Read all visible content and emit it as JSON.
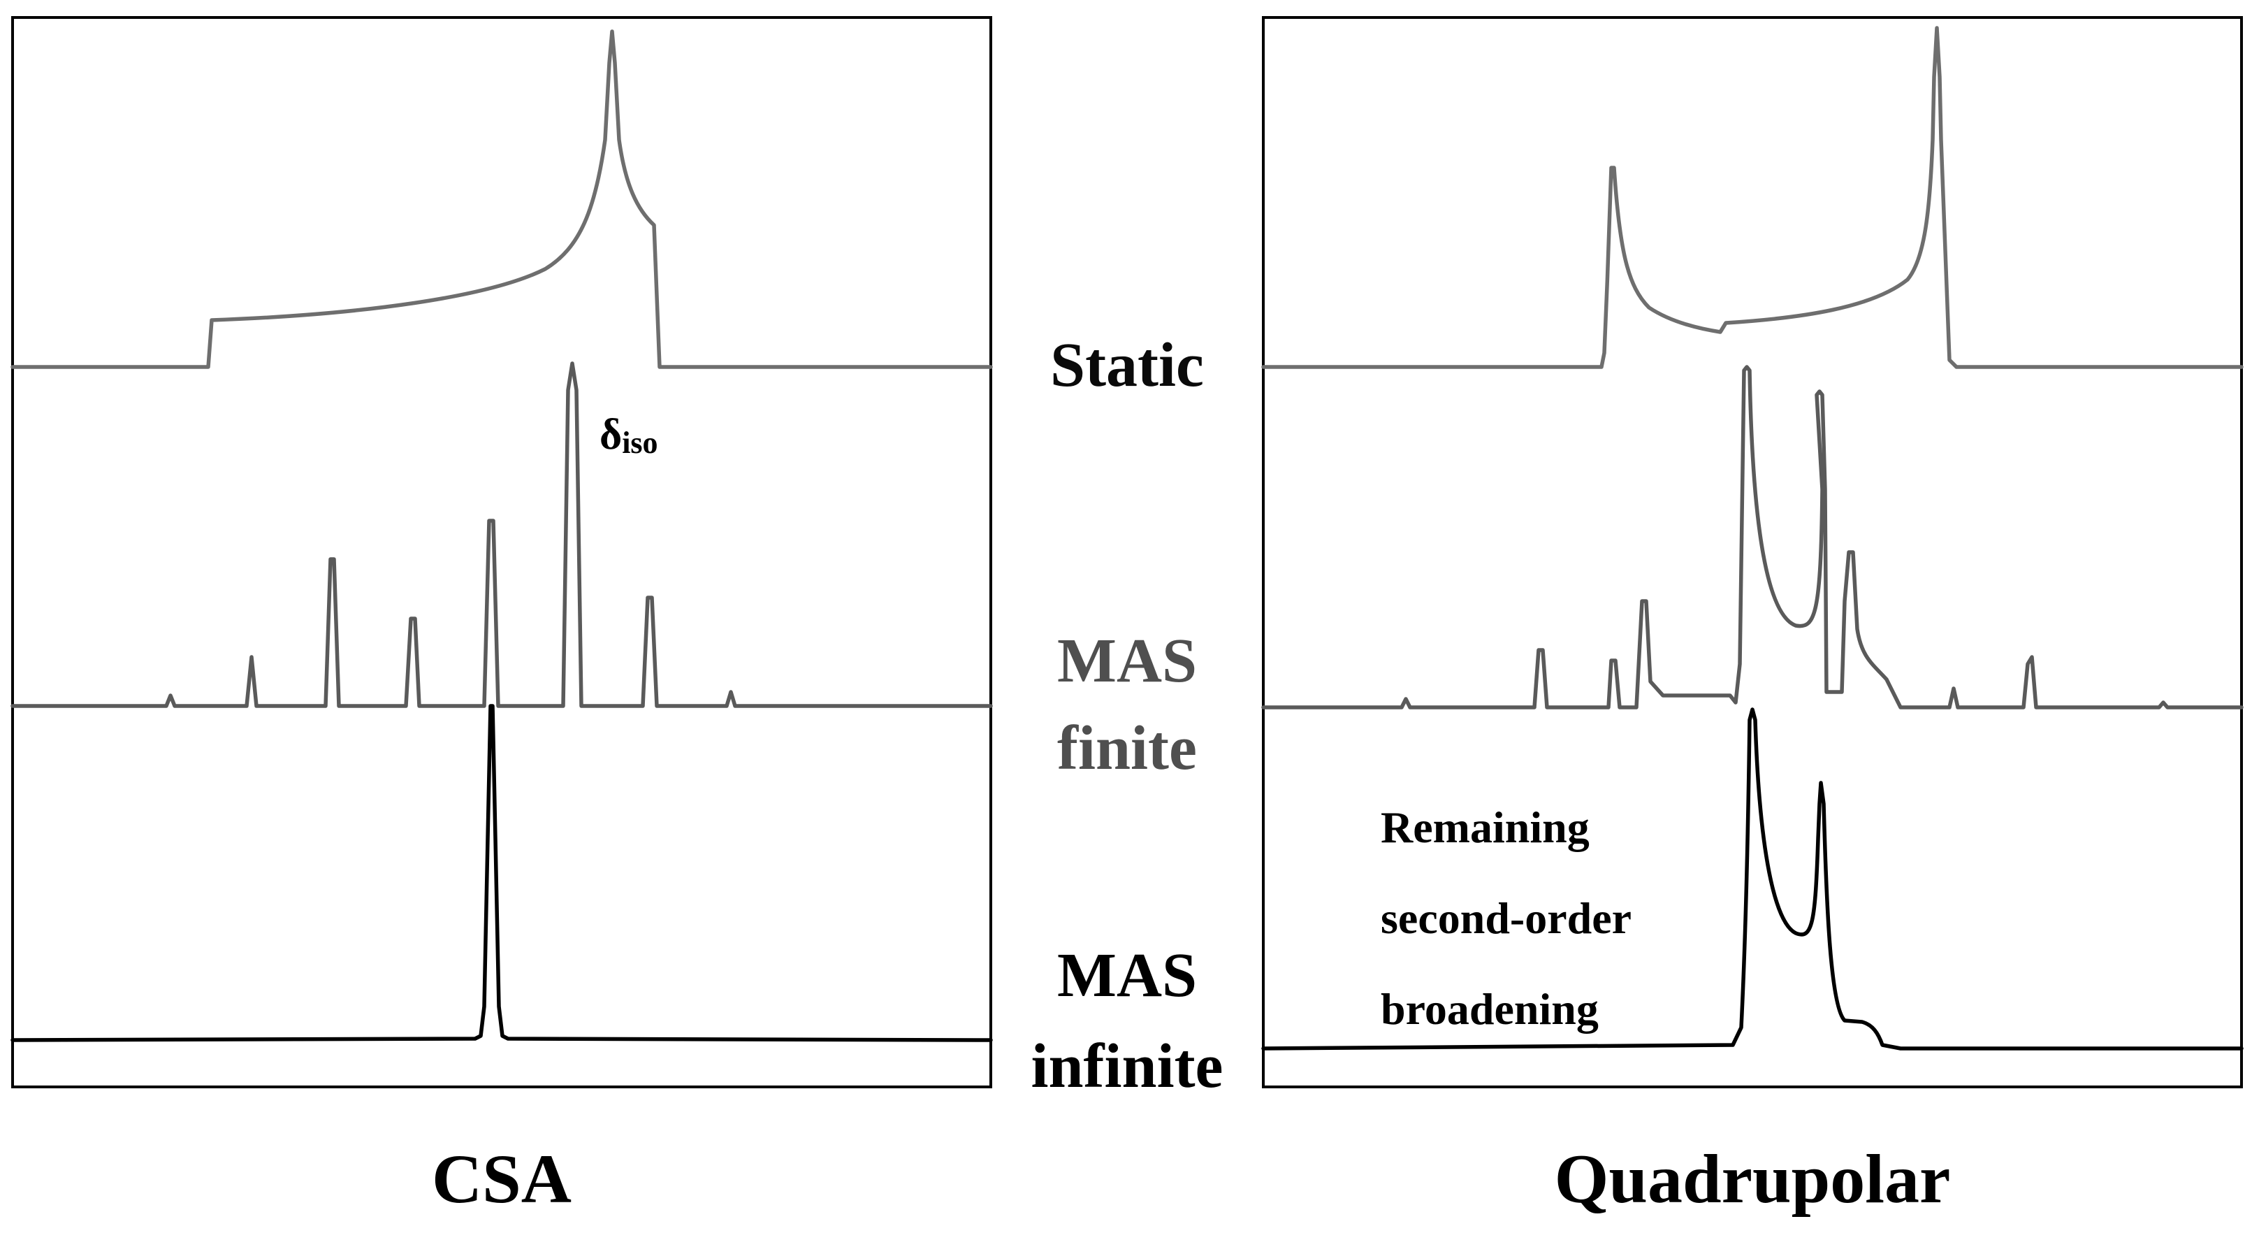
{
  "panels": {
    "left": {
      "title": "CSA",
      "annotation": {
        "symbol": "δ",
        "subscript": "iso"
      }
    },
    "right": {
      "title": "Quadrupolar",
      "annotation": {
        "lines": [
          "Remaining",
          "second-order",
          "broadening"
        ]
      }
    }
  },
  "conditions": {
    "static": "Static",
    "mas_finite": [
      "MAS",
      "finite"
    ],
    "mas_infinite": [
      "MAS",
      "infinite"
    ]
  },
  "colors": {
    "static_trace": "#6e6e6e",
    "mas_finite_trace": "#5a5a5a",
    "mas_infinite_trace": "#000000"
  }
}
